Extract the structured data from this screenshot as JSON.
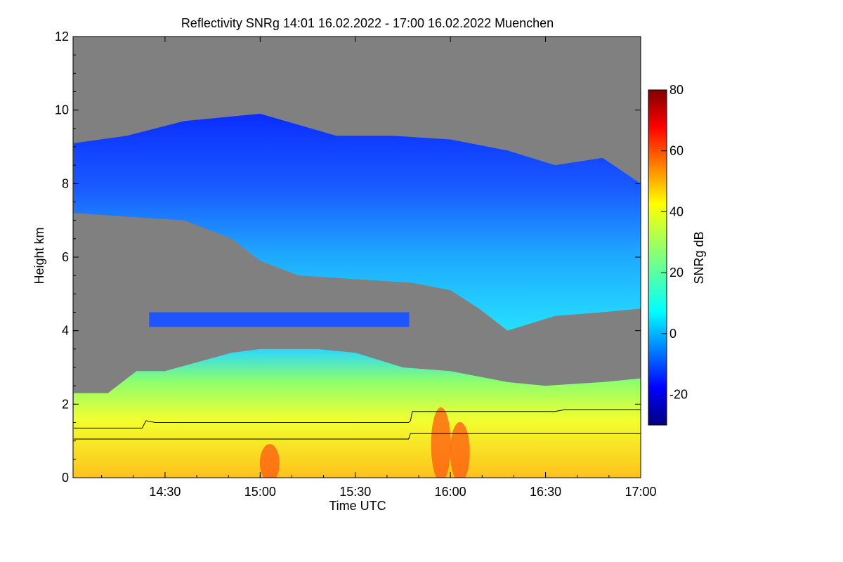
{
  "title": "Reflectivity SNRg   14:01 16.02.2022 - 17:00 16.02.2022 Muenchen",
  "chart_data": {
    "type": "heatmap",
    "variable": "Reflectivity SNRg",
    "time_range": [
      "14:01 16.02.2022",
      "17:00 16.02.2022"
    ],
    "location": "Muenchen",
    "xlabel": "Time UTC",
    "ylabel": "Height km",
    "x_ticks": [
      "14:30",
      "15:00",
      "15:30",
      "16:00",
      "16:30",
      "17:00"
    ],
    "y_ticks": [
      "0",
      "2",
      "4",
      "6",
      "8",
      "10",
      "12"
    ],
    "xlim": [
      "14:01",
      "17:00"
    ],
    "ylim": [
      0,
      12
    ],
    "missing_color": "#808080",
    "colorbar": {
      "label": "SNRg dB",
      "range": [
        -30,
        80
      ],
      "ticks": [
        "-20",
        "0",
        "20",
        "40",
        "60",
        "80"
      ],
      "colormap": "jet"
    },
    "layers": [
      {
        "name": "upper cloud",
        "time_start": "14:01",
        "time_end": "17:00",
        "top_km": [
          [
            14.02,
            9.1
          ],
          [
            14.3,
            9.3
          ],
          [
            14.6,
            9.7
          ],
          [
            15.0,
            9.9
          ],
          [
            15.4,
            9.3
          ],
          [
            15.7,
            9.3
          ],
          [
            16.0,
            9.2
          ],
          [
            16.3,
            8.9
          ],
          [
            16.55,
            8.5
          ],
          [
            16.8,
            8.7
          ],
          [
            17.0,
            8.0
          ]
        ],
        "base_km": [
          [
            14.02,
            7.2
          ],
          [
            14.3,
            7.1
          ],
          [
            14.6,
            7.0
          ],
          [
            14.85,
            6.5
          ],
          [
            15.0,
            5.9
          ],
          [
            15.2,
            5.5
          ],
          [
            15.5,
            5.4
          ],
          [
            15.8,
            5.3
          ],
          [
            16.0,
            5.1
          ],
          [
            16.15,
            4.6
          ],
          [
            16.3,
            4.0
          ],
          [
            16.55,
            4.4
          ],
          [
            16.8,
            4.5
          ],
          [
            17.0,
            4.6
          ]
        ],
        "typical_snr_db": 0
      },
      {
        "name": "mid-level band",
        "time_start": "14:25",
        "time_end": "15:47",
        "top_km": 4.5,
        "base_km": 4.1,
        "typical_snr_db": -15
      },
      {
        "name": "lower precipitation layer",
        "time_start": "14:01",
        "time_end": "17:00",
        "top_km": [
          [
            14.02,
            2.3
          ],
          [
            14.2,
            2.3
          ],
          [
            14.35,
            2.9
          ],
          [
            14.5,
            2.9
          ],
          [
            14.85,
            3.4
          ],
          [
            15.0,
            3.5
          ],
          [
            15.3,
            3.5
          ],
          [
            15.5,
            3.4
          ],
          [
            15.75,
            3.0
          ],
          [
            16.0,
            2.9
          ],
          [
            16.3,
            2.6
          ],
          [
            16.5,
            2.5
          ],
          [
            16.8,
            2.6
          ],
          [
            17.0,
            2.7
          ]
        ],
        "base_km": 0,
        "typical_snr_db": 30,
        "max_snr_db": 60
      }
    ],
    "lines": [
      {
        "name": "boundary line 1",
        "points": [
          [
            14.02,
            1.35
          ],
          [
            14.38,
            1.35
          ],
          [
            14.4,
            1.55
          ],
          [
            14.45,
            1.5
          ],
          [
            15.78,
            1.5
          ],
          [
            15.79,
            1.55
          ],
          [
            15.8,
            1.8
          ],
          [
            16.55,
            1.8
          ],
          [
            16.6,
            1.85
          ],
          [
            17.0,
            1.85
          ]
        ]
      },
      {
        "name": "boundary line 2",
        "points": [
          [
            14.02,
            1.05
          ],
          [
            15.78,
            1.05
          ],
          [
            15.79,
            1.2
          ],
          [
            17.0,
            1.2
          ]
        ]
      }
    ]
  }
}
